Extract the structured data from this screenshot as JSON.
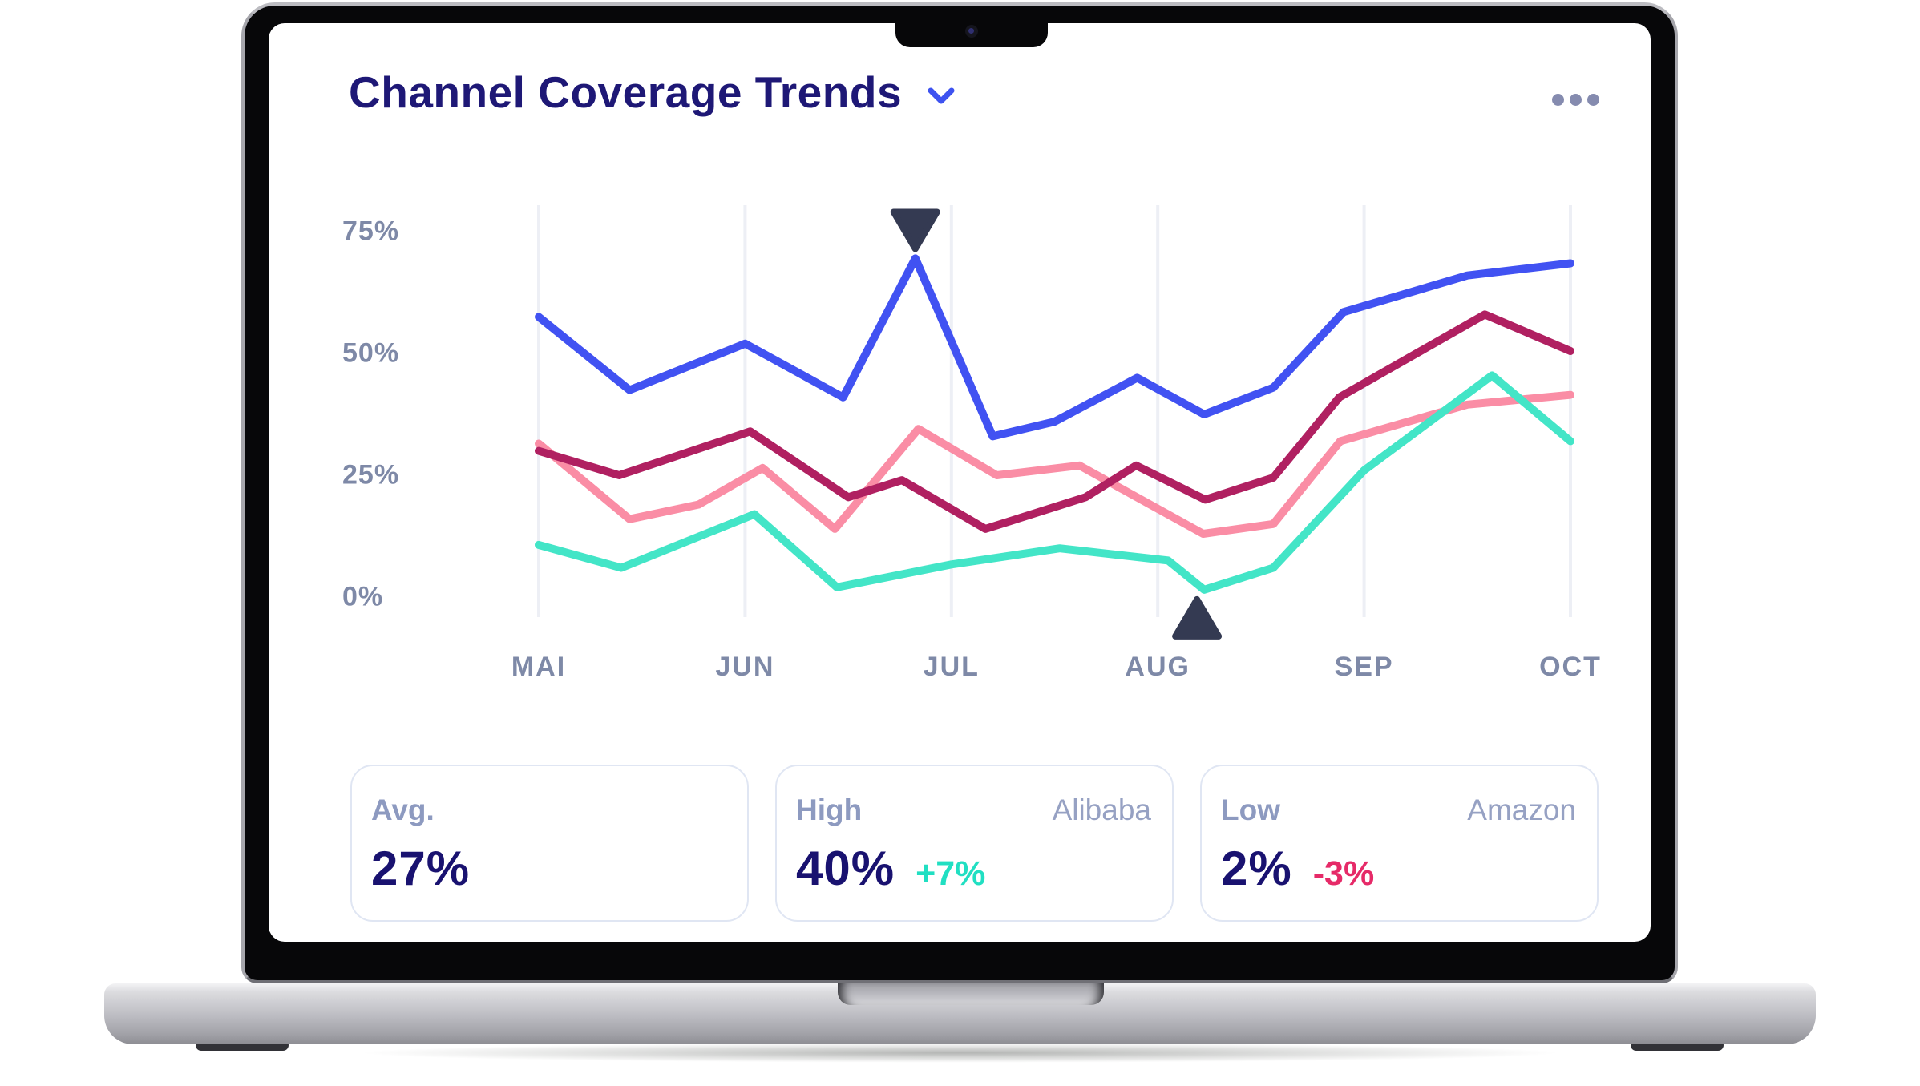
{
  "header": {
    "title": "Channel Coverage Trends",
    "title_color": "#1e1876",
    "chevron_icon": "chevron-down",
    "chevron_color": "#3e53f0",
    "menu_icon": "ellipsis-horizontal",
    "menu_color": "#858baf"
  },
  "chart_data": {
    "type": "line",
    "title": "Channel Coverage Trends",
    "x_categories": [
      "MAI",
      "JUN",
      "JUL",
      "AUG",
      "SEP",
      "OCT"
    ],
    "y_ticks": [
      {
        "label": "75%",
        "value": 75
      },
      {
        "label": "50%",
        "value": 50
      },
      {
        "label": "25%",
        "value": 25
      },
      {
        "label": "0%",
        "value": 0
      }
    ],
    "y_range": [
      0,
      75
    ],
    "grid": "vertical-only",
    "gridline_color": "#edeff5",
    "axis_label_color": "#7e89a7",
    "legend": "none",
    "series": [
      {
        "name": "series-pink",
        "color": "#fa8da5",
        "points": [
          [
            0,
            31.5
          ],
          [
            0.088,
            16
          ],
          [
            0.155,
            19
          ],
          [
            0.217,
            26.5
          ],
          [
            0.287,
            14
          ],
          [
            0.368,
            34.5
          ],
          [
            0.444,
            25
          ],
          [
            0.524,
            27
          ],
          [
            0.644,
            13
          ],
          [
            0.712,
            15
          ],
          [
            0.777,
            32
          ],
          [
            0.9,
            39.5
          ],
          [
            1,
            41.5
          ]
        ]
      },
      {
        "name": "series-crimson",
        "color": "#b02061",
        "points": [
          [
            0,
            30
          ],
          [
            0.078,
            25
          ],
          [
            0.205,
            34
          ],
          [
            0.3,
            20.5
          ],
          [
            0.352,
            24
          ],
          [
            0.433,
            14
          ],
          [
            0.53,
            20.5
          ],
          [
            0.579,
            27
          ],
          [
            0.646,
            20
          ],
          [
            0.712,
            24.5
          ],
          [
            0.776,
            41
          ],
          [
            0.917,
            58
          ],
          [
            1,
            50.5
          ]
        ]
      },
      {
        "name": "series-teal",
        "color": "#43e5c7",
        "points": [
          [
            0,
            10.7
          ],
          [
            0.08,
            6
          ],
          [
            0.209,
            17
          ],
          [
            0.289,
            2
          ],
          [
            0.4,
            6.7
          ],
          [
            0.505,
            10
          ],
          [
            0.61,
            7.5
          ],
          [
            0.645,
            1.5
          ],
          [
            0.712,
            6
          ],
          [
            0.8,
            26
          ],
          [
            0.924,
            45.5
          ],
          [
            1,
            32
          ]
        ]
      },
      {
        "name": "series-blue",
        "color": "#4152f2",
        "points": [
          [
            0,
            57.5
          ],
          [
            0.088,
            42.5
          ],
          [
            0.2,
            52
          ],
          [
            0.295,
            41
          ],
          [
            0.365,
            69.5
          ],
          [
            0.44,
            33
          ],
          [
            0.5,
            36
          ],
          [
            0.58,
            45
          ],
          [
            0.645,
            37.5
          ],
          [
            0.712,
            43
          ],
          [
            0.78,
            58.5
          ],
          [
            0.9,
            66
          ],
          [
            1,
            68.5
          ]
        ]
      }
    ],
    "markers": [
      {
        "shape": "triangle-down",
        "x": 0.365,
        "value": 69.5,
        "color": "#343a52"
      },
      {
        "shape": "triangle-up",
        "x": 0.638,
        "value": 1.5,
        "color": "#343a52"
      }
    ]
  },
  "cards": [
    {
      "label": "Avg.",
      "value": "27%",
      "company": "",
      "delta": "",
      "delta_color": ""
    },
    {
      "label": "High",
      "value": "40%",
      "company": "Alibaba",
      "delta": "+7%",
      "delta_color": "#21dfc2"
    },
    {
      "label": "Low",
      "value": "2%",
      "company": "Amazon",
      "delta": "-3%",
      "delta_color": "#e62a68"
    }
  ]
}
